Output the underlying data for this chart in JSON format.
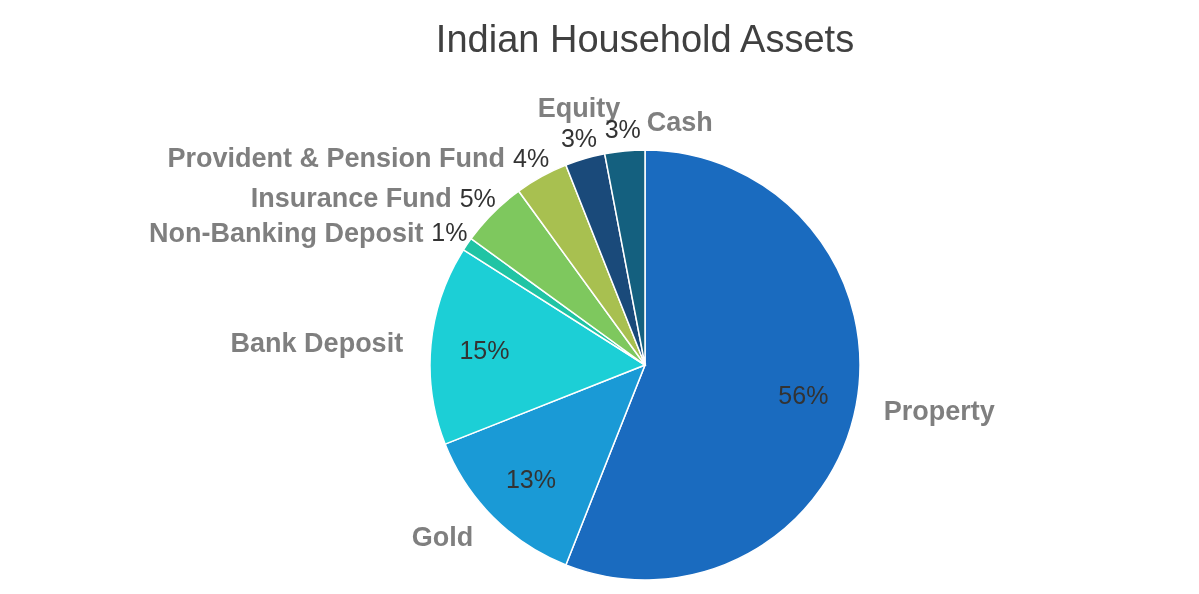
{
  "chart_data": {
    "type": "pie",
    "title": "Indian Household Assets",
    "categories": [
      "Property",
      "Gold",
      "Bank Deposit",
      "Non-Banking Deposit",
      "Insurance Fund",
      "Provident & Pension Fund",
      "Equity",
      "Cash"
    ],
    "values": [
      56,
      13,
      15,
      1,
      5,
      4,
      3,
      3
    ],
    "colors": [
      "#1a6bbf",
      "#1a9ad6",
      "#1ccfd6",
      "#20c4a4",
      "#7ec85e",
      "#a8c050",
      "#1a4a7a",
      "#14607f"
    ],
    "value_labels": [
      "56%",
      "13%",
      "15%",
      "1%",
      "5%",
      "4%",
      "3%",
      "3%"
    ],
    "legend": false
  }
}
